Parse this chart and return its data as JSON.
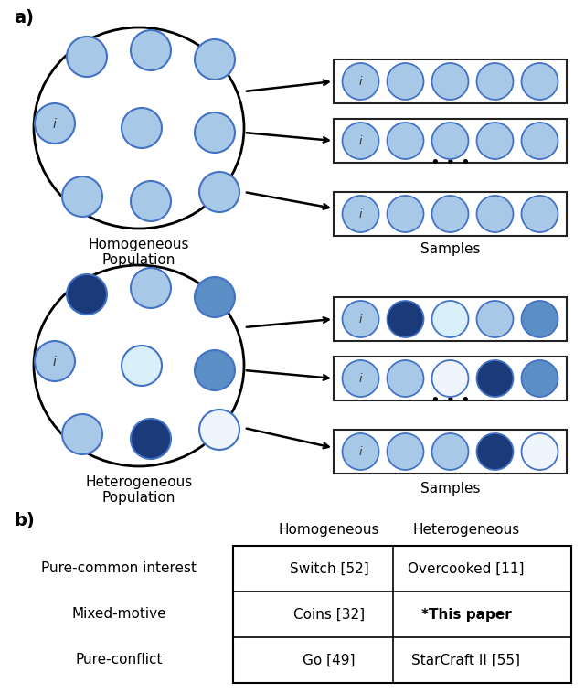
{
  "light_blue": "#A8C8E8",
  "medium_blue": "#5B8EC5",
  "dark_blue": "#1A3A7A",
  "very_light_blue": "#D8EEF8",
  "near_white_blue": "#EEF5FC",
  "teal_blue": "#4A7BAA",
  "circle_edge": "#4472C4",
  "bg_color": "#FFFFFF",
  "homo_ellipse_circles": [
    "#A8C8E8",
    "#A8C8E8",
    "#A8C8E8",
    "#A8C8E8",
    "#A8C8E8",
    "#A8C8E8",
    "#A8C8E8",
    "#A8C8E8",
    "#A8C8E8"
  ],
  "homo_i_index": 3,
  "hetero_ellipse_colors": [
    "#1A3A7A",
    "#A8C8E8",
    "#5B8EC5",
    "#A8C8E8",
    "#D8EEF8",
    "#5B8EC5",
    "#A8C8E8",
    "#1A3A7A",
    "#EEF5FC"
  ],
  "hetero_i_index": 3,
  "homo_sample_colors": [
    [
      "#A8C8E8",
      "#A8C8E8",
      "#A8C8E8",
      "#A8C8E8"
    ],
    [
      "#A8C8E8",
      "#A8C8E8",
      "#A8C8E8",
      "#A8C8E8"
    ],
    [
      "#A8C8E8",
      "#A8C8E8",
      "#A8C8E8",
      "#A8C8E8"
    ]
  ],
  "hetero_sample_colors": [
    [
      "#1A3A7A",
      "#D8EEF8",
      "#A8C8E8",
      "#5B8EC5"
    ],
    [
      "#A8C8E8",
      "#EEF5FC",
      "#1A3A7A",
      "#5B8EC5"
    ],
    [
      "#A8C8E8",
      "#A8C8E8",
      "#1A3A7A",
      "#EEF5FC"
    ]
  ],
  "table_rows": [
    "Pure-common interest",
    "Mixed-motive",
    "Pure-conflict"
  ],
  "table_col_homogeneous": [
    "Switch [52]",
    "Coins [32]",
    "Go [49]"
  ],
  "table_col_heterogeneous": [
    "Overcooked [11]",
    "*This paper",
    "StarCraft II [55]"
  ],
  "table_col_headers": [
    "Homogeneous",
    "Heterogeneous"
  ],
  "section_a_label": "a)",
  "section_b_label": "b)",
  "homogeneous_label": "Homogeneous\nPopulation",
  "heterogeneous_label": "Heterogeneous\nPopulation",
  "samples_label": "Samples"
}
